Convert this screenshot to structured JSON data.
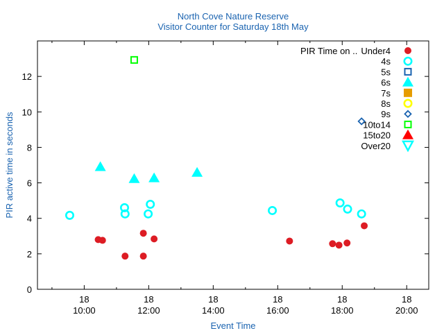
{
  "chart_data": {
    "type": "scatter",
    "title": "North Cove Nature Reserve",
    "subtitle": "Visitor Counter for Saturday 18th May",
    "xlabel": "Event Time",
    "ylabel": "PIR active time in seconds",
    "xlim": [
      "08:33",
      "20:41"
    ],
    "ylim": [
      0,
      14
    ],
    "yticks": [
      0,
      2,
      4,
      6,
      8,
      10,
      12
    ],
    "xticks": [
      {
        "time": "10:00",
        "day": "18",
        "label": "10:00"
      },
      {
        "time": "12:00",
        "day": "18",
        "label": "12:00"
      },
      {
        "time": "14:00",
        "day": "18",
        "label": "14:00"
      },
      {
        "time": "16:00",
        "day": "18",
        "label": "16:00"
      },
      {
        "time": "18:00",
        "day": "18",
        "label": "18:00"
      },
      {
        "time": "20:00",
        "day": "18",
        "label": "20:00"
      }
    ],
    "x_minor_ticks": [
      "09:00",
      "11:00",
      "13:00",
      "15:00",
      "17:00",
      "19:00"
    ],
    "grid": false,
    "legend_placement": "top-right",
    "legend_title": "PIR Time on ..",
    "series": [
      {
        "name": "Under4",
        "marker": "filled-circle",
        "color": "#dd1c24",
        "points": [
          [
            "10:26",
            2.8
          ],
          [
            "10:34",
            2.76
          ],
          [
            "11:16",
            1.87
          ],
          [
            "11:50",
            3.16
          ],
          [
            "11:50",
            1.87
          ],
          [
            "12:10",
            2.84
          ],
          [
            "16:22",
            2.72
          ],
          [
            "17:42",
            2.57
          ],
          [
            "17:54",
            2.49
          ],
          [
            "18:09",
            2.61
          ],
          [
            "18:41",
            3.58
          ]
        ]
      },
      {
        "name": "4s",
        "marker": "open-circle",
        "color": "#00ffff",
        "points": [
          [
            "09:33",
            4.17
          ],
          [
            "11:15",
            4.6
          ],
          [
            "11:16",
            4.25
          ],
          [
            "12:03",
            4.79
          ],
          [
            "11:59",
            4.25
          ],
          [
            "15:50",
            4.44
          ],
          [
            "17:56",
            4.87
          ],
          [
            "18:10",
            4.52
          ],
          [
            "18:36",
            4.25
          ]
        ]
      },
      {
        "name": "5s",
        "marker": "open-square",
        "color": "#1a63b0",
        "points": []
      },
      {
        "name": "6s",
        "marker": "filled-triangle",
        "color": "#00ffff",
        "points": [
          [
            "10:30",
            6.9
          ],
          [
            "11:33",
            6.23
          ],
          [
            "12:10",
            6.27
          ],
          [
            "13:30",
            6.58
          ]
        ]
      },
      {
        "name": "7s",
        "marker": "filled-square",
        "color": "#e69c00",
        "points": []
      },
      {
        "name": "8s",
        "marker": "open-circle",
        "color": "#ffff00",
        "points": []
      },
      {
        "name": "9s",
        "marker": "open-diamond",
        "color": "#1a63b0",
        "points": [
          [
            "18:36",
            9.47
          ]
        ]
      },
      {
        "name": "10to14",
        "marker": "open-square",
        "color": "#00ff00",
        "points": [
          [
            "11:33",
            12.93
          ]
        ]
      },
      {
        "name": "15to20",
        "marker": "filled-triangle",
        "color": "#ff0000",
        "points": []
      },
      {
        "name": "Over20",
        "marker": "open-triangle-down",
        "color": "#00ffff",
        "points": []
      }
    ]
  }
}
